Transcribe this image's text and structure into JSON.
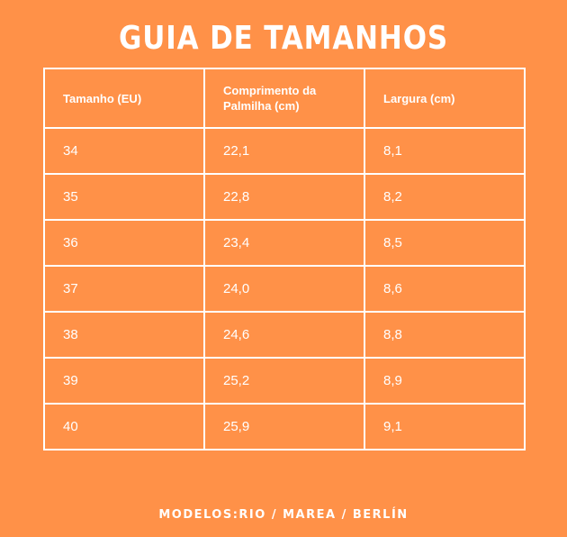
{
  "title": "GUIA DE TAMANHOS",
  "table": {
    "headers": [
      "Tamanho (EU)",
      "Comprimento da Palmilha (cm)",
      "Largura (cm)"
    ],
    "rows": [
      [
        "34",
        "22,1",
        "8,1"
      ],
      [
        "35",
        "22,8",
        "8,2"
      ],
      [
        "36",
        "23,4",
        "8,5"
      ],
      [
        "37",
        "24,0",
        "8,6"
      ],
      [
        "38",
        "24,6",
        "8,8"
      ],
      [
        "39",
        "25,2",
        "8,9"
      ],
      [
        "40",
        "25,9",
        "9,1"
      ]
    ]
  },
  "footer": "MODELOS:RIO / MAREA / BERLÍN",
  "colors": {
    "background": "#FF9148",
    "text": "#FFFFFF",
    "border": "#FFFFFF"
  }
}
